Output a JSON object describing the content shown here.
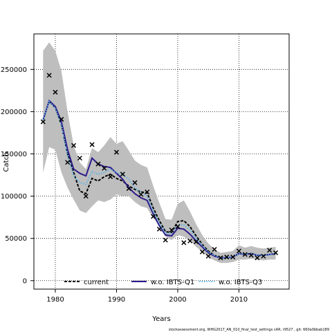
{
  "chart_data": {
    "type": "line",
    "xlabel": "Years",
    "ylabel": "Catch",
    "xlim": [
      1976.5,
      2018.2
    ],
    "ylim": [
      -10000,
      292000
    ],
    "xticks": [
      1980,
      1990,
      2000,
      2010
    ],
    "yticks": [
      0,
      50000,
      100000,
      150000,
      200000,
      250000
    ],
    "ytick_labels": [
      "0",
      "50000",
      "100000",
      "150000",
      "200000",
      "250000"
    ],
    "grid": true,
    "legend_position": "bottom",
    "x": [
      1978,
      1979,
      1980,
      1981,
      1982,
      1983,
      1984,
      1985,
      1986,
      1987,
      1988,
      1989,
      1990,
      1991,
      1992,
      1993,
      1994,
      1995,
      1996,
      1997,
      1998,
      1999,
      2000,
      2001,
      2002,
      2003,
      2004,
      2005,
      2006,
      2007,
      2008,
      2009,
      2010,
      2011,
      2012,
      2013,
      2014,
      2015,
      2016
    ],
    "band": {
      "color": "#bebebe",
      "upper": [
        272000,
        282000,
        272000,
        248000,
        200000,
        160000,
        140000,
        132000,
        157000,
        152000,
        160000,
        170000,
        162000,
        165000,
        154000,
        142000,
        137000,
        134000,
        112000,
        92000,
        73000,
        72000,
        91000,
        95000,
        82000,
        67000,
        54000,
        44000,
        37000,
        33000,
        34000,
        35000,
        42000,
        39000,
        41000,
        39000,
        38000,
        39000,
        40000
      ],
      "lower": [
        128000,
        158000,
        155000,
        128000,
        110000,
        96000,
        83000,
        80000,
        88000,
        95000,
        93000,
        96000,
        102000,
        100000,
        100000,
        93000,
        88000,
        86000,
        74000,
        65000,
        52000,
        48000,
        54000,
        52000,
        48000,
        40000,
        34000,
        28000,
        24000,
        21000,
        21000,
        22000,
        25000,
        25000,
        26000,
        25000,
        24000,
        25000,
        25000
      ]
    },
    "series": [
      {
        "name": "current",
        "color": "#000000",
        "style": "dashed",
        "width": 2,
        "values": [
          190000,
          212000,
          205000,
          185000,
          150000,
          128000,
          106000,
          103000,
          121000,
          118000,
          123000,
          126000,
          121000,
          118000,
          112000,
          108000,
          105000,
          104000,
          86000,
          71000,
          58000,
          57000,
          70000,
          71000,
          64000,
          53000,
          43000,
          35000,
          30000,
          27000,
          27000,
          28000,
          32000,
          31000,
          32000,
          30000,
          30000,
          31000,
          32000
        ]
      },
      {
        "name": "w.o. IBTS-Q1",
        "color": "#2e1a8a",
        "style": "solid",
        "width": 2,
        "values": [
          190000,
          213000,
          206000,
          188000,
          155000,
          132000,
          127000,
          124000,
          145000,
          138000,
          135000,
          134000,
          127000,
          120000,
          110000,
          103000,
          98000,
          95000,
          79000,
          65000,
          54000,
          53000,
          62000,
          61000,
          55000,
          47000,
          40000,
          33000,
          29000,
          27000,
          27000,
          28000,
          32000,
          31000,
          32000,
          30000,
          30000,
          31000,
          32000
        ]
      },
      {
        "name": "w.o. IBTS-Q3",
        "color": "#56b4e9",
        "style": "dotted",
        "width": 2,
        "values": [
          190000,
          212000,
          204000,
          184000,
          148000,
          124000,
          116000,
          114000,
          129000,
          126000,
          128000,
          132000,
          128000,
          126000,
          120000,
          110000,
          104000,
          100000,
          82000,
          68000,
          56000,
          56000,
          66000,
          66000,
          60000,
          50000,
          42000,
          34000,
          30000,
          27000,
          27000,
          28000,
          32000,
          31000,
          32000,
          30000,
          30000,
          31000,
          32000
        ]
      }
    ],
    "points": {
      "name": "observed catch",
      "marker": "x",
      "x": [
        1978,
        1979,
        1980,
        1981,
        1982,
        1983,
        1984,
        1985,
        1986,
        1987,
        1988,
        1989,
        1990,
        1991,
        1992,
        1993,
        1994,
        1995,
        1996,
        1997,
        1998,
        1999,
        2000,
        2001,
        2002,
        2003,
        2004,
        2005,
        2006,
        2007,
        2008,
        2009,
        2010,
        2011,
        2012,
        2013,
        2014,
        2015,
        2016
      ],
      "y": [
        188000,
        243000,
        223000,
        191000,
        140000,
        160000,
        145000,
        100000,
        161000,
        138000,
        133000,
        123000,
        152000,
        126000,
        109000,
        116000,
        102000,
        105000,
        76000,
        61000,
        48000,
        60000,
        64000,
        45000,
        47000,
        46000,
        34000,
        29000,
        37000,
        27000,
        28000,
        28000,
        35000,
        31000,
        30000,
        27000,
        29000,
        36000,
        33000
      ]
    },
    "footer_text": "stockassessment.org,  WHG2017_AN_010_final_test_settings   cAR, r9527 , git: 660a0bbab189"
  }
}
